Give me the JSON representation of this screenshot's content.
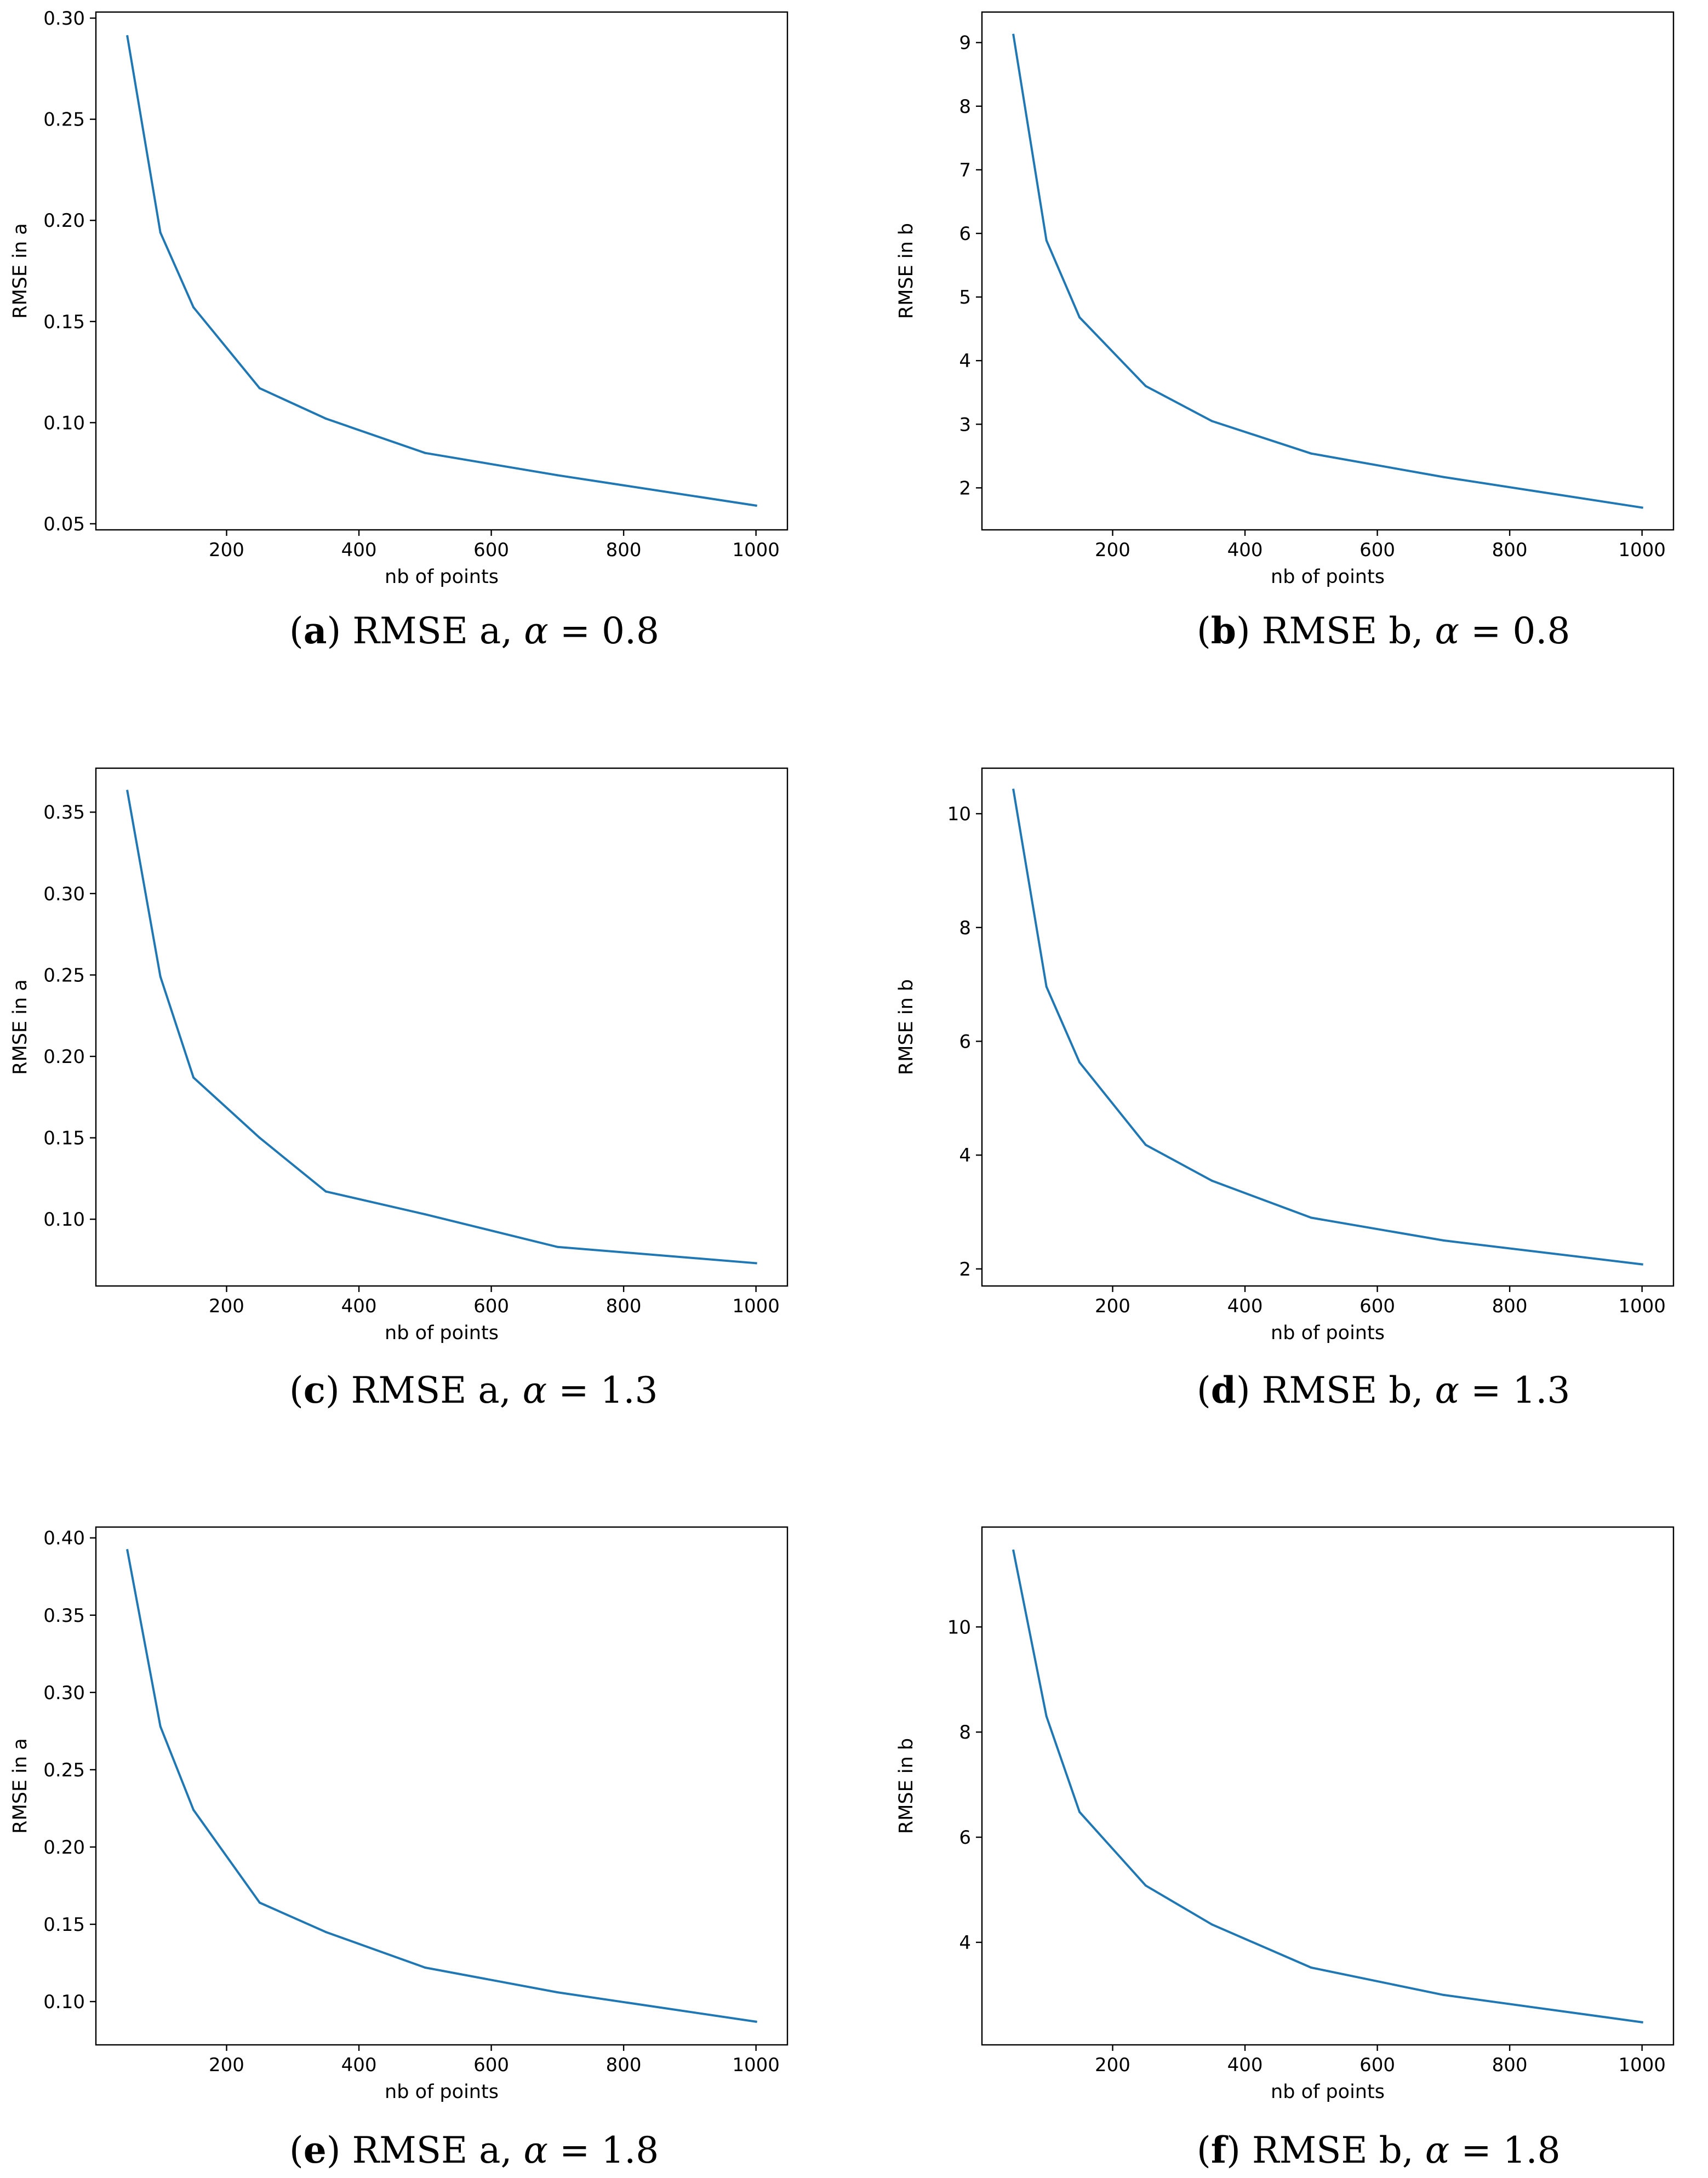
{
  "chart_data": [
    {
      "type": "line",
      "id": "a",
      "x": [
        50,
        100,
        150,
        250,
        350,
        500,
        700,
        1000
      ],
      "y": [
        0.291,
        0.194,
        0.157,
        0.117,
        0.102,
        0.085,
        0.074,
        0.059
      ],
      "xlabel": "nb of points",
      "ylabel": "RMSE in a",
      "xlim": [
        2.5,
        1047.5
      ],
      "ylim": [
        0.047,
        0.303
      ],
      "xticks": [
        200,
        400,
        600,
        800,
        1000
      ],
      "xtick_labels": [
        "200",
        "400",
        "600",
        "800",
        "1000"
      ],
      "yticks": [
        0.05,
        0.1,
        0.15,
        0.2,
        0.25,
        0.3
      ],
      "ytick_labels": [
        "0.05",
        "0.10",
        "0.15",
        "0.20",
        "0.25",
        "0.30"
      ],
      "line_color": "#1f77b4",
      "caption": {
        "letter": "a",
        "name": "RMSE a,",
        "alpha": "α",
        "eq": "= 0.8"
      }
    },
    {
      "type": "line",
      "id": "b",
      "x": [
        50,
        100,
        150,
        250,
        350,
        500,
        700,
        1000
      ],
      "y": [
        9.12,
        5.89,
        4.68,
        3.6,
        3.05,
        2.54,
        2.17,
        1.69
      ],
      "xlabel": "nb of points",
      "ylabel": "RMSE in b",
      "xlim": [
        2.5,
        1047.5
      ],
      "ylim": [
        1.34,
        9.48
      ],
      "xticks": [
        200,
        400,
        600,
        800,
        1000
      ],
      "xtick_labels": [
        "200",
        "400",
        "600",
        "800",
        "1000"
      ],
      "yticks": [
        2,
        3,
        4,
        5,
        6,
        7,
        8,
        9
      ],
      "ytick_labels": [
        "2",
        "3",
        "4",
        "5",
        "6",
        "7",
        "8",
        "9"
      ],
      "line_color": "#1f77b4",
      "caption": {
        "letter": "b",
        "name": "RMSE b,",
        "alpha": "α",
        "eq": "= 0.8"
      }
    },
    {
      "type": "line",
      "id": "c",
      "x": [
        50,
        100,
        150,
        250,
        350,
        500,
        700,
        1000
      ],
      "y": [
        0.363,
        0.249,
        0.187,
        0.15,
        0.117,
        0.103,
        0.083,
        0.073
      ],
      "xlabel": "nb of points",
      "ylabel": "RMSE in a",
      "xlim": [
        2.5,
        1047.5
      ],
      "ylim": [
        0.059,
        0.377
      ],
      "xticks": [
        200,
        400,
        600,
        800,
        1000
      ],
      "xtick_labels": [
        "200",
        "400",
        "600",
        "800",
        "1000"
      ],
      "yticks": [
        0.1,
        0.15,
        0.2,
        0.25,
        0.3,
        0.35
      ],
      "ytick_labels": [
        "0.10",
        "0.15",
        "0.20",
        "0.25",
        "0.30",
        "0.35"
      ],
      "line_color": "#1f77b4",
      "caption": {
        "letter": "c",
        "name": "RMSE a,",
        "alpha": "α",
        "eq": "= 1.3"
      }
    },
    {
      "type": "line",
      "id": "d",
      "x": [
        50,
        100,
        150,
        250,
        350,
        500,
        700,
        1000
      ],
      "y": [
        10.42,
        6.96,
        5.63,
        4.18,
        3.55,
        2.9,
        2.5,
        2.08
      ],
      "xlabel": "nb of points",
      "ylabel": "RMSE in b",
      "xlim": [
        2.5,
        1047.5
      ],
      "ylim": [
        1.7,
        10.8
      ],
      "xticks": [
        200,
        400,
        600,
        800,
        1000
      ],
      "xtick_labels": [
        "200",
        "400",
        "600",
        "800",
        "1000"
      ],
      "yticks": [
        2,
        4,
        6,
        8,
        10
      ],
      "ytick_labels": [
        "2",
        "4",
        "6",
        "8",
        "10"
      ],
      "line_color": "#1f77b4",
      "caption": {
        "letter": "d",
        "name": "RMSE b,",
        "alpha": "α",
        "eq": "= 1.3"
      }
    },
    {
      "type": "line",
      "id": "e",
      "x": [
        50,
        100,
        150,
        250,
        350,
        500,
        700,
        1000
      ],
      "y": [
        0.392,
        0.278,
        0.224,
        0.164,
        0.145,
        0.122,
        0.106,
        0.087
      ],
      "xlabel": "nb of points",
      "ylabel": "RMSE in a",
      "xlim": [
        2.5,
        1047.5
      ],
      "ylim": [
        0.072,
        0.407
      ],
      "xticks": [
        200,
        400,
        600,
        800,
        1000
      ],
      "xtick_labels": [
        "200",
        "400",
        "600",
        "800",
        "1000"
      ],
      "yticks": [
        0.1,
        0.15,
        0.2,
        0.25,
        0.3,
        0.35,
        0.4
      ],
      "ytick_labels": [
        "0.10",
        "0.15",
        "0.20",
        "0.25",
        "0.30",
        "0.35",
        "0.40"
      ],
      "line_color": "#1f77b4",
      "caption": {
        "letter": "e",
        "name": "RMSE a,",
        "alpha": "α",
        "eq": "= 1.8"
      }
    },
    {
      "type": "line",
      "id": "f",
      "x": [
        50,
        100,
        150,
        250,
        350,
        500,
        700,
        1000
      ],
      "y": [
        11.45,
        8.3,
        6.48,
        5.08,
        4.34,
        3.52,
        3.0,
        2.48
      ],
      "xlabel": "nb of points",
      "ylabel": "RMSE in b",
      "xlim": [
        2.5,
        1047.5
      ],
      "ylim": [
        2.05,
        11.9
      ],
      "xticks": [
        200,
        400,
        600,
        800,
        1000
      ],
      "xtick_labels": [
        "200",
        "400",
        "600",
        "800",
        "1000"
      ],
      "yticks": [
        4,
        6,
        8,
        10
      ],
      "ytick_labels": [
        "4",
        "6",
        "8",
        "10"
      ],
      "line_color": "#1f77b4",
      "caption": {
        "letter": "f",
        "name": "RMSE b,",
        "alpha": "α",
        "eq": "= 1.8"
      }
    }
  ]
}
